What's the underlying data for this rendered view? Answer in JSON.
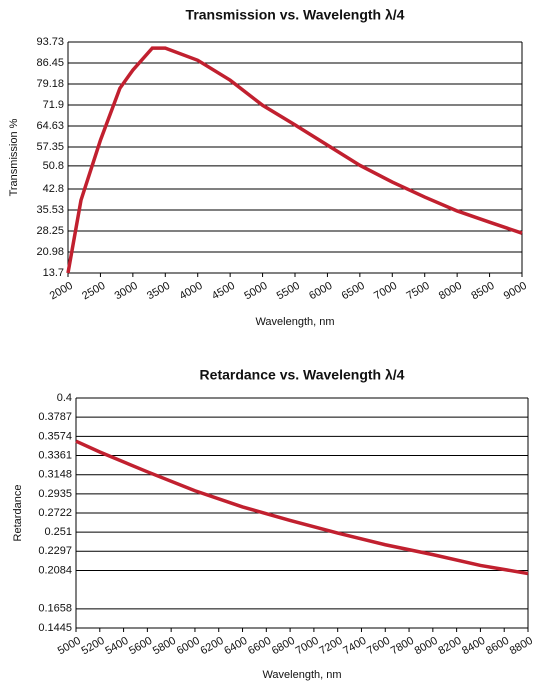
{
  "chart_data": [
    {
      "type": "line",
      "title": "Transmission vs. Wavelength λ/4",
      "x_label": "Wavelength, nm",
      "y_label": "Transmission %",
      "x": [
        2000,
        2200,
        2500,
        2800,
        3000,
        3300,
        3500,
        4000,
        4500,
        5000,
        5500,
        6000,
        6500,
        7000,
        7500,
        8000,
        8500,
        9000
      ],
      "series": [
        {
          "name": "Transmission",
          "color": "#c1202f",
          "values": [
            13.7,
            38.9,
            59.7,
            77.7,
            84,
            91.6,
            91.6,
            87.4,
            80.5,
            71.8,
            65,
            58,
            51,
            45.2,
            40,
            35.2,
            31.3,
            27.5
          ]
        }
      ],
      "xlim": [
        2000,
        9000
      ],
      "xticks": [
        2000,
        2500,
        3000,
        3500,
        4000,
        4500,
        5000,
        5500,
        6000,
        6500,
        7000,
        7500,
        8000,
        8500,
        9000
      ],
      "ylim": [
        13.7,
        93.73
      ],
      "yticks": [
        13.7,
        20.98,
        28.25,
        35.53,
        42.8,
        50.8,
        57.35,
        64.63,
        71.9,
        79.18,
        86.45,
        93.73
      ],
      "grid": true
    },
    {
      "type": "line",
      "title": "Retardance vs. Wavelength λ/4",
      "x_label": "Wavelength, nm",
      "y_label": "Retardance",
      "x": [
        5000,
        5200,
        5600,
        6000,
        6400,
        6800,
        7200,
        7600,
        8000,
        8400,
        8800
      ],
      "series": [
        {
          "name": "Retardance",
          "color": "#c1202f",
          "values": [
            0.352,
            0.34,
            0.318,
            0.297,
            0.279,
            0.264,
            0.25,
            0.237,
            0.226,
            0.214,
            0.205
          ]
        }
      ],
      "xlim": [
        5000,
        8800
      ],
      "xticks": [
        5000,
        5200,
        5400,
        5600,
        5800,
        6000,
        6200,
        6400,
        6600,
        6800,
        7000,
        7200,
        7400,
        7600,
        7800,
        8000,
        8200,
        8400,
        8600,
        8800
      ],
      "ylim": [
        0.1445,
        0.4
      ],
      "yticks": [
        0.1445,
        0.1658,
        0.2084,
        0.2297,
        0.251,
        0.2722,
        0.2935,
        0.3148,
        0.3361,
        0.3574,
        0.3787,
        0.4
      ],
      "grid": true
    }
  ]
}
